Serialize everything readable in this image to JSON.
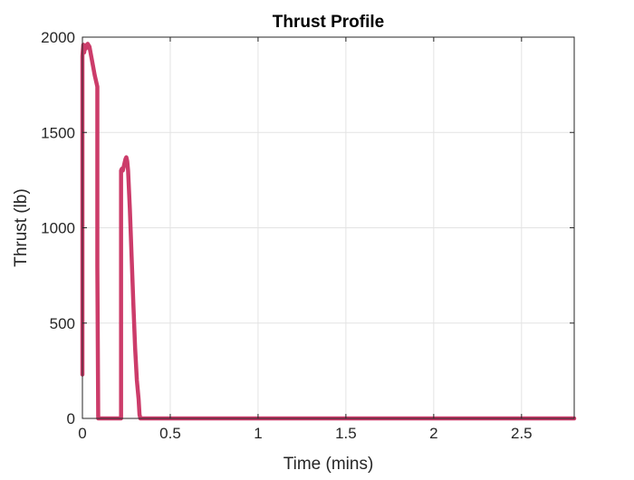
{
  "chart_data": {
    "type": "line",
    "title": "Thrust Profile",
    "xlabel": "Time (mins)",
    "ylabel": "Thrust (lb)",
    "xlim": [
      0,
      2.8
    ],
    "ylim": [
      0,
      2000
    ],
    "xticks": [
      0,
      0.5,
      1,
      1.5,
      2,
      2.5
    ],
    "xtick_labels": [
      "0",
      "0.5",
      "1",
      "1.5",
      "2",
      "2.5"
    ],
    "yticks": [
      0,
      500,
      1000,
      1500,
      2000
    ],
    "ytick_labels": [
      "0",
      "500",
      "1000",
      "1500",
      "2000"
    ],
    "grid": true,
    "series": [
      {
        "color": "#cc3c6a",
        "x": [
          0.0,
          0.0,
          0.005,
          0.01,
          0.015,
          0.02,
          0.025,
          0.03,
          0.04,
          0.05,
          0.06,
          0.07,
          0.08,
          0.085,
          0.085,
          0.09,
          0.15,
          0.22,
          0.22,
          0.225,
          0.23,
          0.235,
          0.24,
          0.245,
          0.25,
          0.255,
          0.26,
          0.27,
          0.28,
          0.29,
          0.3,
          0.31,
          0.32,
          0.325,
          0.33,
          0.34,
          0.5,
          1.0,
          1.5,
          2.0,
          2.5,
          2.8
        ],
        "y": [
          230,
          1900,
          1960,
          1920,
          1950,
          1940,
          1960,
          1965,
          1950,
          1900,
          1850,
          1800,
          1760,
          1740,
          800,
          0,
          0,
          0,
          1300,
          1310,
          1300,
          1320,
          1340,
          1360,
          1370,
          1350,
          1300,
          1100,
          850,
          600,
          370,
          200,
          100,
          20,
          0,
          0,
          0,
          0,
          0,
          0,
          0,
          0
        ]
      }
    ]
  }
}
